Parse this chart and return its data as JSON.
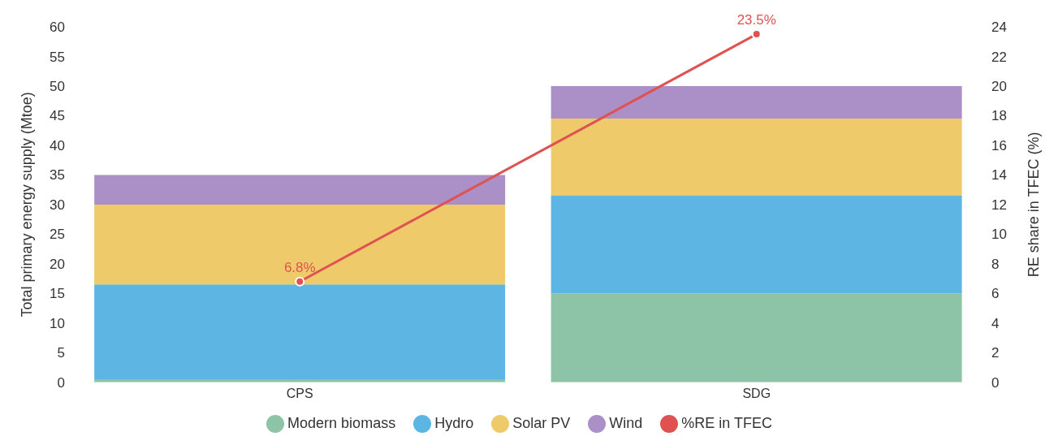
{
  "chart_data": {
    "type": "bar",
    "stacked": true,
    "categories": [
      "CPS",
      "SDG"
    ],
    "ylabel": "Total primary energy supply (Mtoe)",
    "y2label": "RE share in TFEC (%)",
    "ylim": [
      0,
      60
    ],
    "yticks": [
      0,
      5,
      10,
      15,
      20,
      25,
      30,
      35,
      40,
      45,
      50,
      55,
      60
    ],
    "y2lim": [
      0,
      24
    ],
    "y2ticks": [
      0,
      2,
      4,
      6,
      8,
      10,
      12,
      14,
      16,
      18,
      20,
      22,
      24
    ],
    "grid": false,
    "legend": "bottom",
    "series": [
      {
        "name": "Modern biomass",
        "color": "#8dc3a7",
        "values": [
          0.5,
          15
        ]
      },
      {
        "name": "Hydro",
        "color": "#5db5e3",
        "values": [
          16,
          16.5
        ]
      },
      {
        "name": "Solar PV",
        "color": "#eeca6a",
        "values": [
          13.5,
          13
        ]
      },
      {
        "name": "Wind",
        "color": "#aa90c7",
        "values": [
          5,
          5.5
        ]
      },
      {
        "name": "%RE in TFEC",
        "type": "line",
        "axis": "y2",
        "color": "#e05252",
        "marker": "circle",
        "values": [
          6.8,
          23.5
        ],
        "value_labels": [
          "6.8%",
          "23.5%"
        ]
      }
    ]
  }
}
